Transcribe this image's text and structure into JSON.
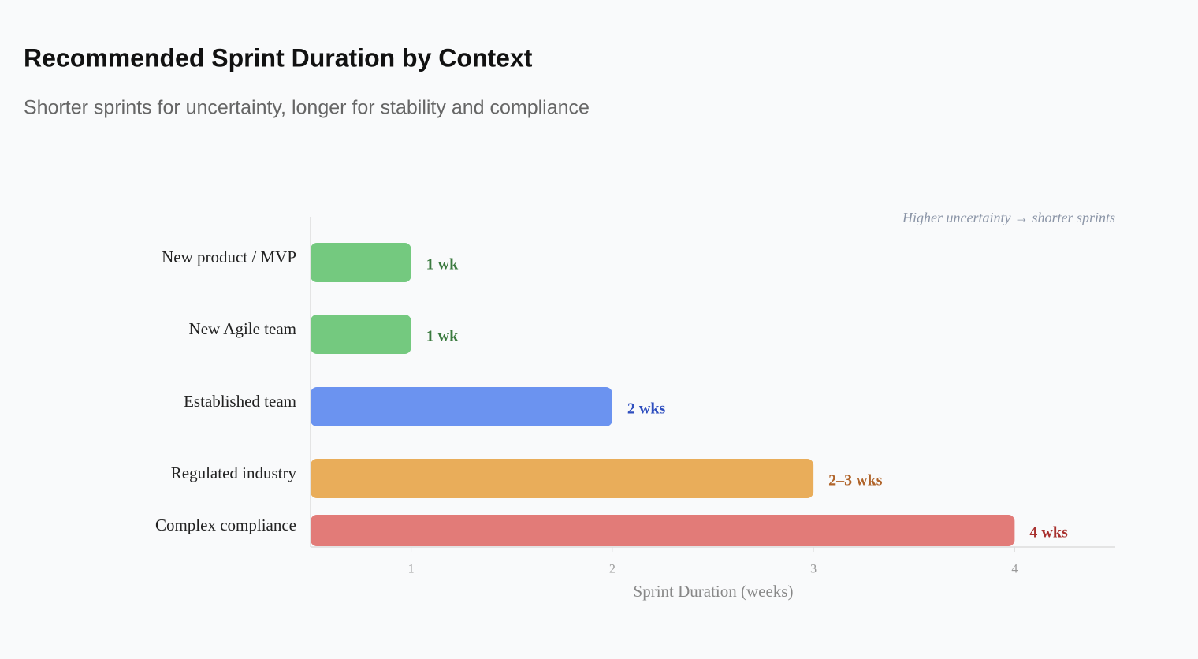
{
  "chart_data": {
    "type": "bar",
    "orientation": "horizontal",
    "title": "Recommended Sprint Duration by Context",
    "subtitle": "Shorter sprints for uncertainty, longer for stability and compliance",
    "annotation": "Higher uncertainty → shorter sprints",
    "x_label": "Sprint Duration (weeks)",
    "categories": [
      "New product / MVP",
      "New Agile team",
      "Established team",
      "Regulated industry",
      "Complex compliance"
    ],
    "values": [
      1,
      1,
      2,
      3,
      4
    ],
    "value_labels": [
      "1 wk",
      "1 wk",
      "2 wks",
      "2–3 wks",
      "4 wks"
    ],
    "colors": [
      "#74c97f",
      "#74c97f",
      "#6b93f0",
      "#e9ad5a",
      "#e27b78"
    ],
    "label_colors": [
      "#3b7a3f",
      "#3b7a3f",
      "#2f4fbf",
      "#b0642a",
      "#a8302e"
    ],
    "xlim": [
      0.5,
      4.5
    ],
    "xticks": [
      1,
      2,
      3,
      4
    ]
  }
}
